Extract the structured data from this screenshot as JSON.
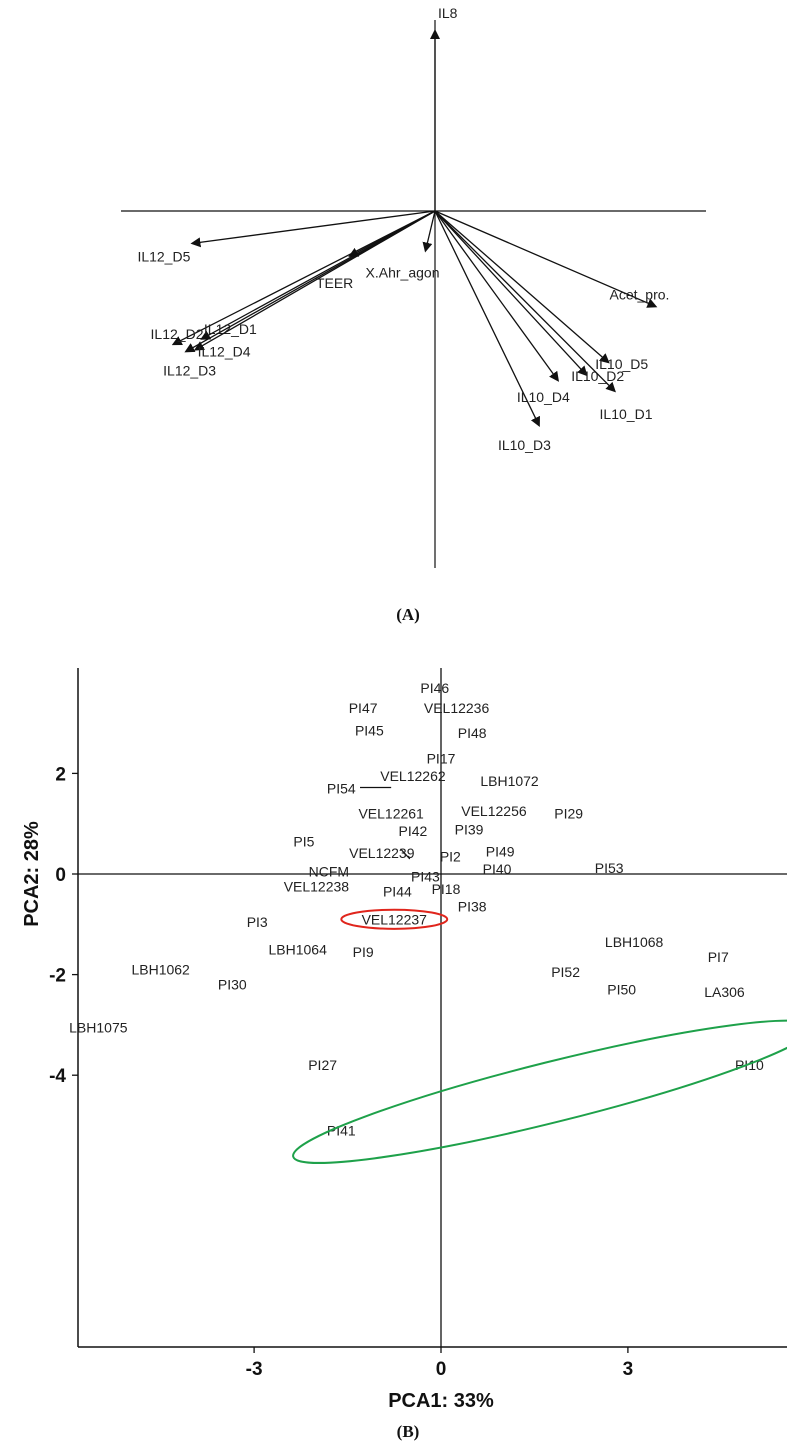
{
  "chart_data": [
    {
      "type": "biplot",
      "panel_label": "(A)",
      "vectors": [
        {
          "label": "IL8",
          "x": 0.0,
          "y": 1.0
        },
        {
          "label": "IL12_D5",
          "x": -0.77,
          "y": -0.18
        },
        {
          "label": "TEER",
          "x": -0.27,
          "y": -0.25
        },
        {
          "label": "X.Ahr_agon",
          "x": -0.03,
          "y": -0.22
        },
        {
          "label": "Acet_pro.",
          "x": 0.7,
          "y": -0.53
        },
        {
          "label": "IL12_D2",
          "x": -0.83,
          "y": -0.74
        },
        {
          "label": "IL12_D1",
          "x": -0.74,
          "y": -0.71
        },
        {
          "label": "IL12_D4",
          "x": -0.76,
          "y": -0.77
        },
        {
          "label": "IL12_D3",
          "x": -0.79,
          "y": -0.78
        },
        {
          "label": "IL10_D5",
          "x": 0.55,
          "y": -0.84
        },
        {
          "label": "IL10_D2",
          "x": 0.48,
          "y": -0.91
        },
        {
          "label": "IL10_D4",
          "x": 0.39,
          "y": -0.94
        },
        {
          "label": "IL10_D1",
          "x": 0.57,
          "y": -1.0
        },
        {
          "label": "IL10_D3",
          "x": 0.33,
          "y": -1.19
        }
      ]
    },
    {
      "type": "scatter",
      "panel_label": "(B)",
      "xlabel": "PCA1: 33%",
      "ylabel": "PCA2: 28%",
      "xticks": [
        -3,
        0,
        3
      ],
      "yticks": [
        2,
        0,
        -2,
        -4
      ],
      "xlim": [
        -5.9,
        5.6
      ],
      "ylim": [
        -5.25,
        4.0
      ],
      "points": [
        {
          "label": "PI46",
          "x": -0.1,
          "y": 3.7
        },
        {
          "label": "PI47",
          "x": -1.25,
          "y": 3.3
        },
        {
          "label": "VEL12236",
          "x": 0.25,
          "y": 3.3
        },
        {
          "label": "PI45",
          "x": -1.15,
          "y": 2.85
        },
        {
          "label": "PI48",
          "x": 0.5,
          "y": 2.8
        },
        {
          "label": "PI17",
          "x": 0.0,
          "y": 2.3
        },
        {
          "label": "VEL12262",
          "x": -0.45,
          "y": 1.95
        },
        {
          "label": "LBH1072",
          "x": 1.1,
          "y": 1.85
        },
        {
          "label": "PI54",
          "x": -1.6,
          "y": 1.7
        },
        {
          "label": "VEL12261",
          "x": -0.8,
          "y": 1.2
        },
        {
          "label": "VEL12256",
          "x": 0.85,
          "y": 1.25
        },
        {
          "label": "PI29",
          "x": 2.05,
          "y": 1.2
        },
        {
          "label": "PI42",
          "x": -0.45,
          "y": 0.85
        },
        {
          "label": "PI39",
          "x": 0.45,
          "y": 0.88
        },
        {
          "label": "PI5",
          "x": -2.2,
          "y": 0.65
        },
        {
          "label": "VEL12239",
          "x": -0.95,
          "y": 0.42
        },
        {
          "label": "PI2",
          "x": 0.15,
          "y": 0.35
        },
        {
          "label": "PI49",
          "x": 0.95,
          "y": 0.45
        },
        {
          "label": "NCFM",
          "x": -1.8,
          "y": 0.05
        },
        {
          "label": "PI43",
          "x": -0.25,
          "y": -0.05
        },
        {
          "label": "PI40",
          "x": 0.9,
          "y": 0.1
        },
        {
          "label": "PI53",
          "x": 2.7,
          "y": 0.12
        },
        {
          "label": "VEL12238",
          "x": -2.0,
          "y": -0.25
        },
        {
          "label": "PI44",
          "x": -0.7,
          "y": -0.35
        },
        {
          "label": "PI18",
          "x": 0.08,
          "y": -0.3
        },
        {
          "label": "PI38",
          "x": 0.5,
          "y": -0.65
        },
        {
          "label": "VEL12237",
          "x": -0.75,
          "y": -0.9
        },
        {
          "label": "PI3",
          "x": -2.95,
          "y": -0.95
        },
        {
          "label": "LBH1064",
          "x": -2.3,
          "y": -1.5
        },
        {
          "label": "PI9",
          "x": -1.25,
          "y": -1.55
        },
        {
          "label": "LBH1068",
          "x": 3.1,
          "y": -1.35
        },
        {
          "label": "PI7",
          "x": 4.45,
          "y": -1.65
        },
        {
          "label": "LBH1062",
          "x": -4.5,
          "y": -1.9
        },
        {
          "label": "PI52",
          "x": 2.0,
          "y": -1.95
        },
        {
          "label": "PI30",
          "x": -3.35,
          "y": -2.2
        },
        {
          "label": "PI50",
          "x": 2.9,
          "y": -2.3
        },
        {
          "label": "LA306",
          "x": 4.55,
          "y": -2.35
        },
        {
          "label": "LBH1075",
          "x": -5.5,
          "y": -3.05
        },
        {
          "label": "PI27",
          "x": -1.9,
          "y": -3.8
        },
        {
          "label": "PI10",
          "x": 4.95,
          "y": -3.8
        },
        {
          "label": "PI41",
          "x": -1.6,
          "y": -5.1
        }
      ],
      "leader_lines": [
        {
          "from": [
            -1.3,
            1.72
          ],
          "to": [
            -0.8,
            1.72
          ]
        },
        {
          "from": [
            -0.65,
            0.5
          ],
          "to": [
            -0.5,
            0.3
          ]
        }
      ],
      "highlights": [
        {
          "type": "ellipse",
          "color": "#e0251c",
          "center": [
            -0.75,
            -0.9
          ],
          "rx": 0.85,
          "ry": 0.19
        },
        {
          "type": "ellipse",
          "color": "#1ea14a",
          "center": [
            1.8,
            -4.33
          ],
          "rx": 4.3,
          "ry": 0.6,
          "rotation_deg": -14
        }
      ]
    }
  ]
}
